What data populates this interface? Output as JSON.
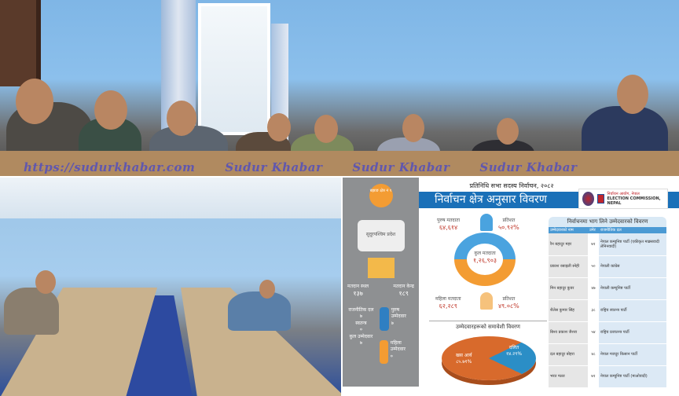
{
  "watermark": [
    "https://sudurkhabar.com",
    "Sudur Khabar",
    "Sudur Khabar",
    "Sudur Khabar"
  ],
  "infographic": {
    "top_line": "प्रतिनिधि सभा सदस्य निर्वाचन, २०८२",
    "title": "निर्वाचन क्षेत्र अनुसार विवरण",
    "commission": {
      "name": "निर्वाचन आयोग, नेपाल",
      "name_en": "ELECTION COMMISSION, NEPAL"
    },
    "side": {
      "constituency": "बझाङ क्षेत्र नं १",
      "province": "सुदूरपश्चिम प्रदेश",
      "polling_place_label": "मतदान स्थल",
      "polling_place": "१३७",
      "polling_center_label": "मतदान केन्द्र",
      "polling_center": "१८९",
      "party_label": "राजनीतिक दल",
      "party": "७",
      "independent_label": "स्वतन्त्र",
      "independent": "०",
      "total_label": "कुल उम्मेदवार",
      "total": "७",
      "male_cand_label": "पुरुष उम्मेदवार",
      "male_cand": "७",
      "female_cand_label": "महिला उम्मेदवार",
      "female_cand": "०"
    },
    "voters": {
      "male_label": "पुरुष मतदाता",
      "male": "६४,६१४",
      "male_pct_label": "प्रतिशत",
      "male_pct": "५०.९२%",
      "total_label": "कुल मतदाता",
      "total": "१,२६,९०३",
      "female_label": "महिला मतदाता",
      "female": "६२,२८९",
      "female_pct_label": "प्रतिशत",
      "female_pct": "४९.०८%",
      "male_share": 50.92,
      "female_share": 49.08,
      "colors": {
        "male": "#4aa3df",
        "female": "#f39c33"
      }
    },
    "inclusion": {
      "title": "उम्मेदवारहरूको समावेशी विवरण",
      "slices": [
        {
          "label": "खस आर्य",
          "value": "८५.७१%",
          "pct": 85.71,
          "color": "#d86a2c"
        },
        {
          "label": "दलित",
          "value": "१४.२९%",
          "pct": 14.29,
          "color": "#2b8ec6"
        }
      ]
    },
    "candidates": {
      "title": "निर्वाचनमा भाग लिने उम्मेदवारको विवरण",
      "headers": [
        "उम्मेदवारको नाम",
        "उमेर",
        "राजनीतिक दल"
      ],
      "rows": [
        [
          "रैन बहादुर महर",
          "७१",
          "नेपाल कम्युनिष्ट पार्टी (एकीकृत माक्र्सवादी लेनिनवादी)"
        ],
        [
          "प्रकाश रसाइली स्नेही",
          "५०",
          "नेपाली कांग्रेस"
        ],
        [
          "मिन बहादुर कुवर",
          "४७",
          "नेपाली कम्युनिष्ट पार्टी"
        ],
        [
          "शैलेस कुमार सिंह",
          "३८",
          "राष्ट्रिय स्वतन्त्र पार्टी"
        ],
        [
          "बिश्व प्रकाश जैशरा",
          "५४",
          "राष्ट्रिय प्रजातन्त्र पार्टी"
        ],
        [
          "दल बहादुर बोहरा",
          "४८",
          "नेपाल मजदुर किसान पार्टी"
        ],
        [
          "भरत मल्ल",
          "७१",
          "नेपाल कम्युनिष्ट पार्टी (माओवादी)"
        ]
      ]
    }
  }
}
